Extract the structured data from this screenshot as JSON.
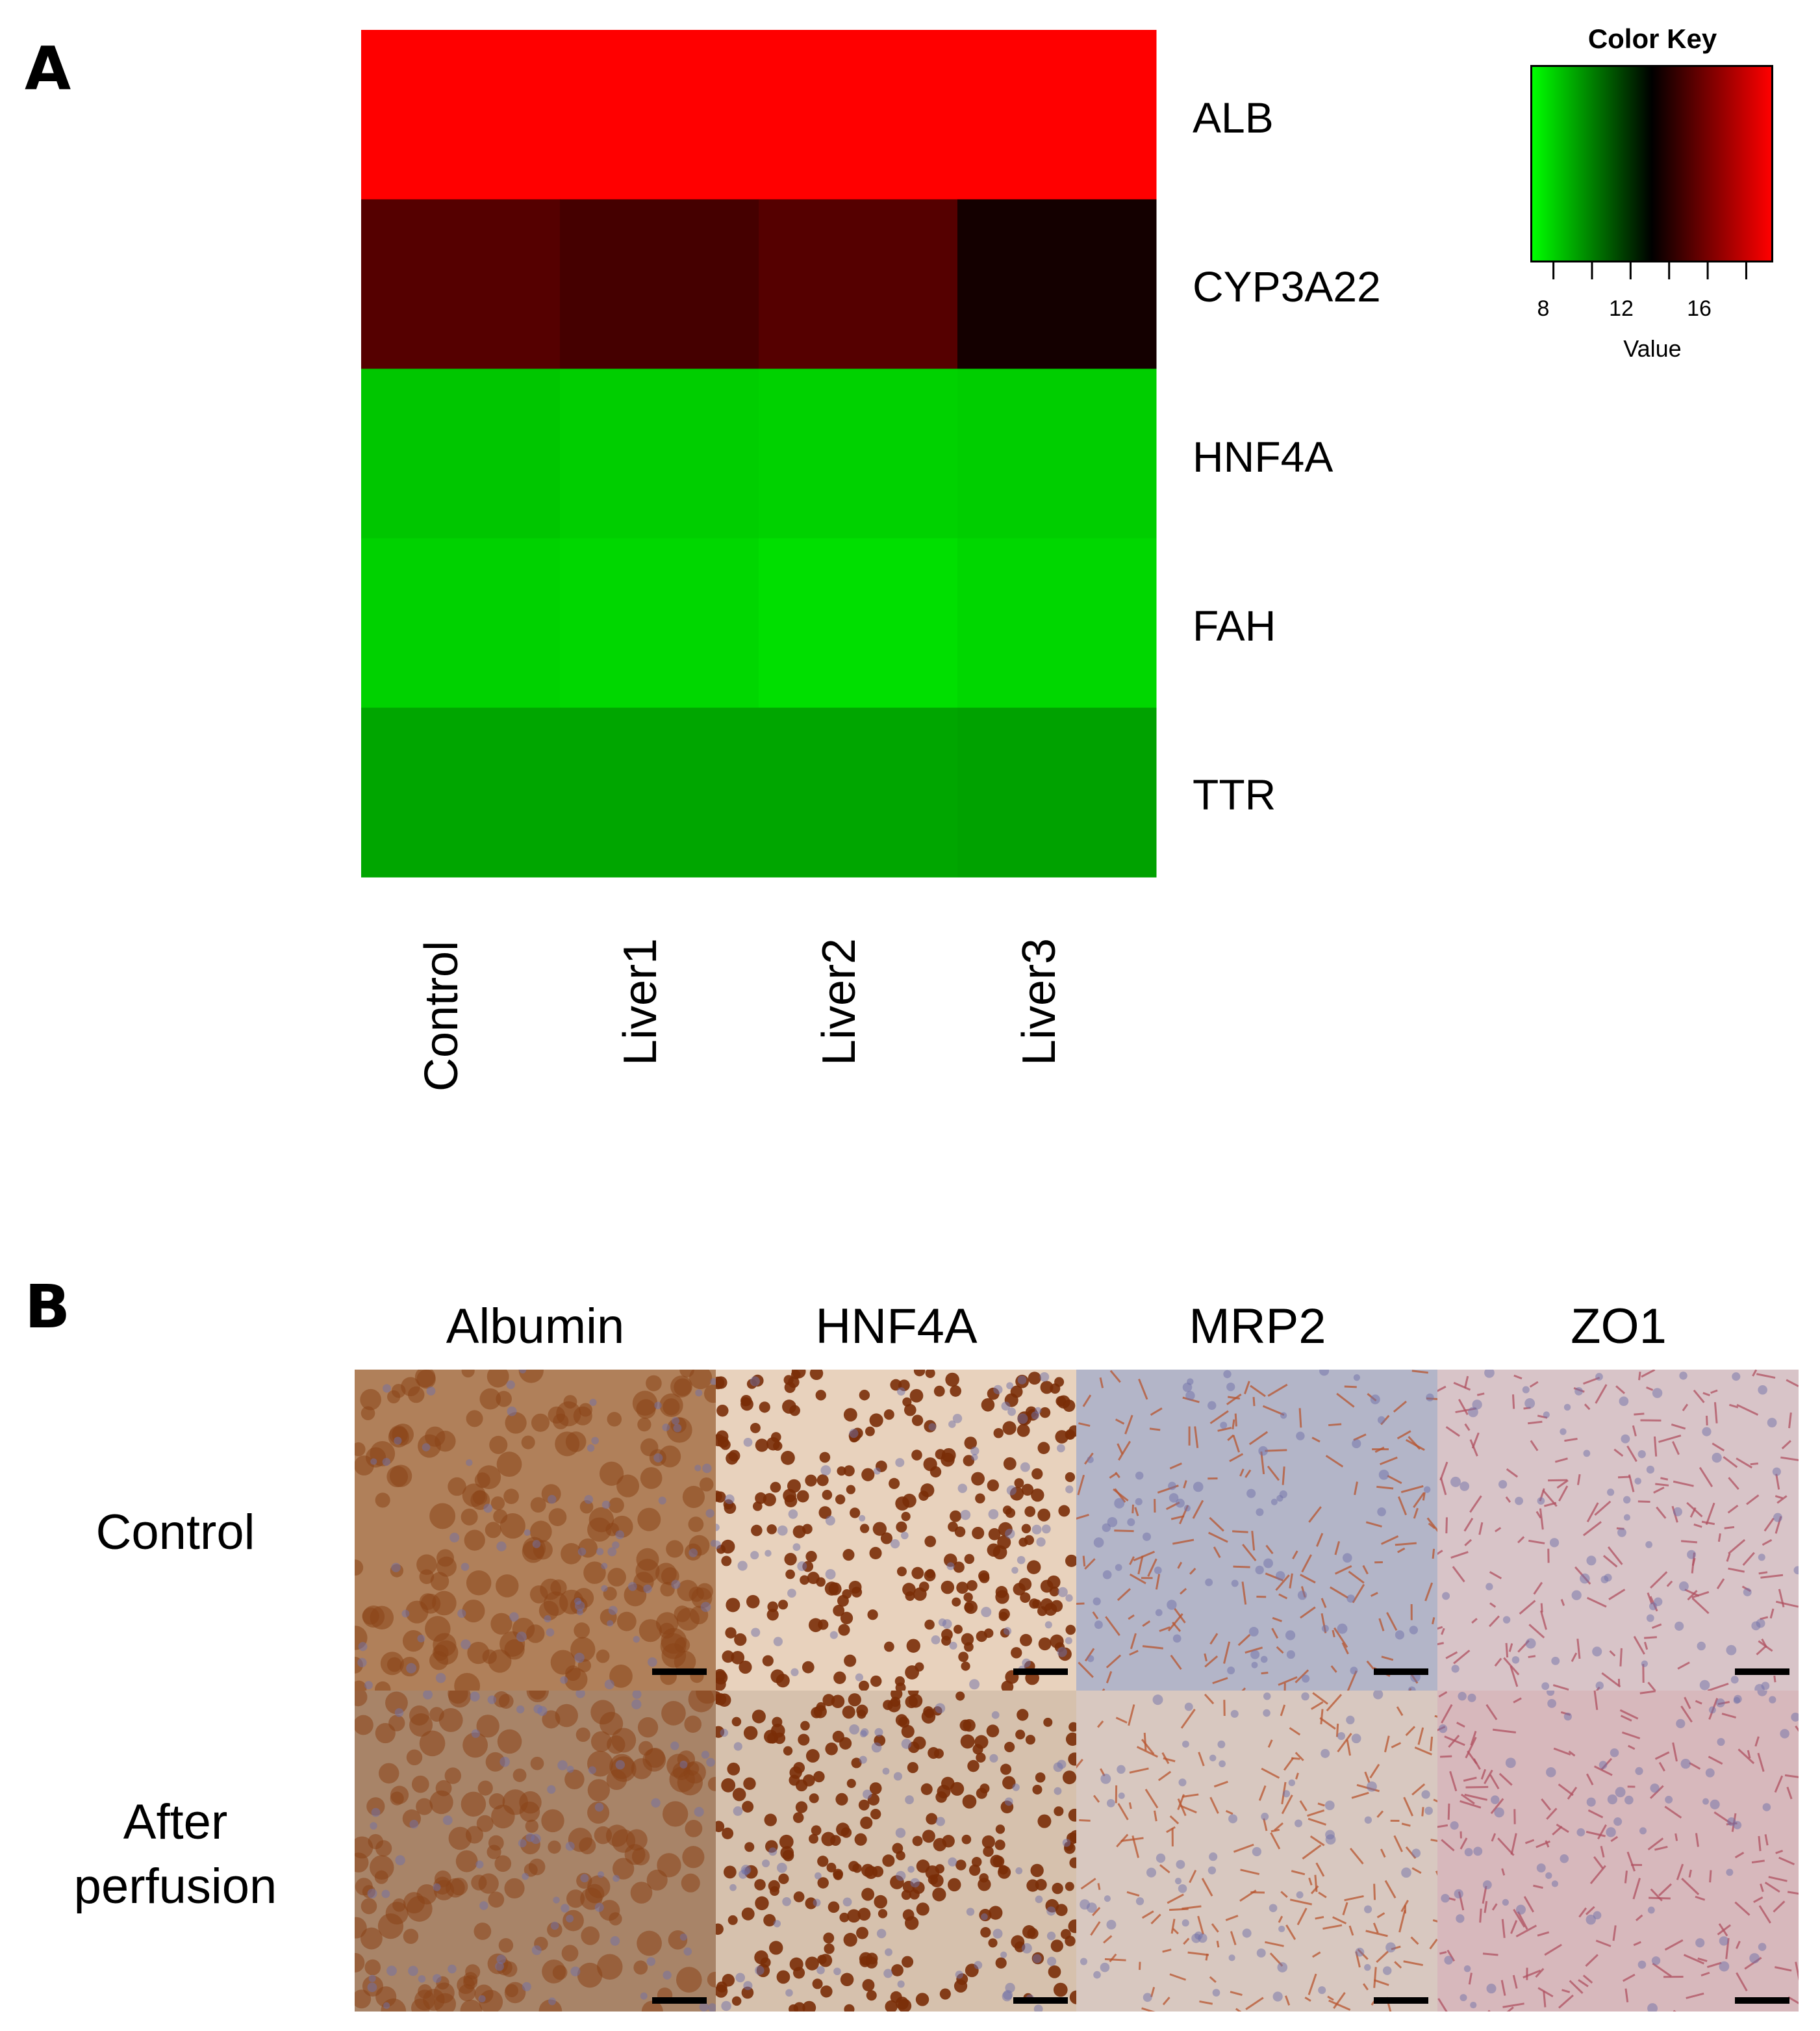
{
  "panel_a": {
    "letter": "A",
    "chart_data": {
      "type": "heatmap",
      "rows": [
        "ALB",
        "CYP3A22",
        "HNF4A",
        "FAH",
        "TTR"
      ],
      "columns": [
        "Control",
        "Liver1",
        "Liver2",
        "Liver3"
      ],
      "values": [
        [
          20,
          20,
          20,
          20
        ],
        [
          15.2,
          14.8,
          15.2,
          13.6
        ],
        [
          8.2,
          8.0,
          7.9,
          8.0
        ],
        [
          7.9,
          7.8,
          7.6,
          7.8
        ],
        [
          9.0,
          9.0,
          9.0,
          9.1
        ]
      ],
      "color_key": {
        "title": "Color Key",
        "xlabel": "Value",
        "tick_labels": [
          "8",
          "12",
          "16"
        ],
        "range": [
          6.8,
          19.4
        ],
        "colors": [
          "#00ff00",
          "#000000",
          "#ff0000"
        ]
      }
    }
  },
  "panel_b": {
    "letter": "B",
    "stains": [
      "Albumin",
      "HNF4A",
      "MRP2",
      "ZO1"
    ],
    "conditions": [
      "Control",
      "After perfusion"
    ],
    "tile_colors": [
      [
        "#b0805a",
        "#e8d2bd",
        "#b3b5c8",
        "#d8c4c8"
      ],
      [
        "#a88468",
        "#d6c1ad",
        "#d8c8c0",
        "#d7b8bc"
      ]
    ],
    "spot_colors": [
      "#8a4418",
      "#7a2e08",
      "#b8542e",
      "#b05060"
    ]
  }
}
